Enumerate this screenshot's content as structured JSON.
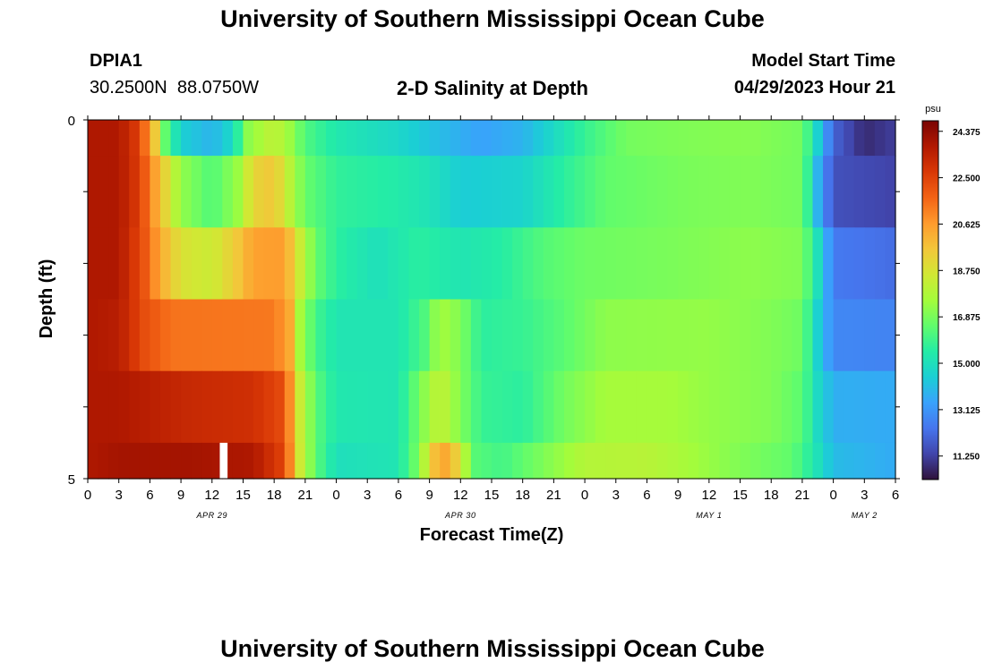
{
  "header": {
    "title": "University of Southern Mississippi Ocean Cube",
    "station_id": "DPIA1",
    "station_coords": "30.2500N  88.0750W",
    "model_start_label": "Model Start Time",
    "model_start_value": "04/29/2023 Hour 21"
  },
  "footer": {
    "title": "University of Southern Mississippi Ocean Cube"
  },
  "chart_data": {
    "type": "heatmap",
    "title": "2-D Salinity at Depth",
    "xlabel": "Forecast Time(Z)",
    "ylabel": "Depth (ft)",
    "colorbar_unit": "psu",
    "colorbar_ticks": [
      "24.375",
      "22.500",
      "20.625",
      "18.750",
      "16.875",
      "15.000",
      "13.125",
      "11.250"
    ],
    "colorbar_range": [
      10.3,
      24.8
    ],
    "colors": [
      "#30123b",
      "#4145ab",
      "#4675ed",
      "#39a2fc",
      "#1bcfd4",
      "#24eca6",
      "#61fc6c",
      "#a4fc3b",
      "#d1e834",
      "#f3c63a",
      "#fe9b2d",
      "#f36315",
      "#d93806",
      "#b11901",
      "#7a0403"
    ],
    "y_range": [
      0,
      5
    ],
    "y_tick_labels": [
      "0",
      "5"
    ],
    "x_range_hours": [
      0,
      78
    ],
    "x_tick_labels": [
      "0",
      "3",
      "6",
      "9",
      "12",
      "15",
      "18",
      "21",
      "0",
      "3",
      "6",
      "9",
      "12",
      "15",
      "18",
      "21",
      "0",
      "3",
      "6",
      "9",
      "12",
      "15",
      "18",
      "21",
      "0",
      "3",
      "6"
    ],
    "date_labels": [
      {
        "label": "APR 29",
        "hour": 12
      },
      {
        "label": "APR 30",
        "hour": 36
      },
      {
        "label": "MAY 1",
        "hour": 60
      },
      {
        "label": "MAY 2",
        "hour": 75
      }
    ],
    "depth_layers": [
      {
        "depth": [
          0,
          0.5
        ],
        "values": [
          {
            "t": 0,
            "v": 23.8
          },
          {
            "t": 3,
            "v": 23.8
          },
          {
            "t": 5,
            "v": 22.5
          },
          {
            "t": 6.5,
            "v": 19.5
          },
          {
            "t": 7.5,
            "v": 16.5
          },
          {
            "t": 9,
            "v": 14.5
          },
          {
            "t": 12,
            "v": 13.8
          },
          {
            "t": 14,
            "v": 14.8
          },
          {
            "t": 15.5,
            "v": 17.2
          },
          {
            "t": 18,
            "v": 18.2
          },
          {
            "t": 19.5,
            "v": 17.4
          },
          {
            "t": 21,
            "v": 16.2
          },
          {
            "t": 24,
            "v": 15.3
          },
          {
            "t": 30,
            "v": 14.7
          },
          {
            "t": 34,
            "v": 14.0
          },
          {
            "t": 38,
            "v": 13.4
          },
          {
            "t": 42,
            "v": 13.8
          },
          {
            "t": 48,
            "v": 15.8
          },
          {
            "t": 52,
            "v": 16.8
          },
          {
            "t": 58,
            "v": 17.0
          },
          {
            "t": 64,
            "v": 17.1
          },
          {
            "t": 69,
            "v": 16.8
          },
          {
            "t": 70.5,
            "v": 14.5
          },
          {
            "t": 72,
            "v": 12.0
          },
          {
            "t": 75,
            "v": 10.8
          },
          {
            "t": 78,
            "v": 11.2
          }
        ]
      },
      {
        "depth": [
          0.5,
          1.5
        ],
        "values": [
          {
            "t": 0,
            "v": 23.8
          },
          {
            "t": 3,
            "v": 23.8
          },
          {
            "t": 5,
            "v": 22.6
          },
          {
            "t": 6.5,
            "v": 20.5
          },
          {
            "t": 8,
            "v": 18.5
          },
          {
            "t": 9,
            "v": 17.3
          },
          {
            "t": 12,
            "v": 16.2
          },
          {
            "t": 14.5,
            "v": 17.4
          },
          {
            "t": 16,
            "v": 19.2
          },
          {
            "t": 18,
            "v": 19.6
          },
          {
            "t": 19.5,
            "v": 18.0
          },
          {
            "t": 21,
            "v": 16.6
          },
          {
            "t": 24,
            "v": 15.7
          },
          {
            "t": 30,
            "v": 15.4
          },
          {
            "t": 33,
            "v": 15.1
          },
          {
            "t": 36,
            "v": 14.4
          },
          {
            "t": 42,
            "v": 14.6
          },
          {
            "t": 46,
            "v": 15.6
          },
          {
            "t": 50,
            "v": 16.5
          },
          {
            "t": 58,
            "v": 16.9
          },
          {
            "t": 64,
            "v": 17.0
          },
          {
            "t": 69,
            "v": 16.8
          },
          {
            "t": 70.5,
            "v": 13.8
          },
          {
            "t": 72,
            "v": 11.6
          },
          {
            "t": 78,
            "v": 11.3
          }
        ]
      },
      {
        "depth": [
          1.5,
          2.5
        ],
        "values": [
          {
            "t": 0,
            "v": 23.8
          },
          {
            "t": 3,
            "v": 23.8
          },
          {
            "t": 5.5,
            "v": 22.0
          },
          {
            "t": 7,
            "v": 20.3
          },
          {
            "t": 9,
            "v": 18.8
          },
          {
            "t": 12,
            "v": 18.4
          },
          {
            "t": 14.5,
            "v": 19.6
          },
          {
            "t": 16,
            "v": 20.5
          },
          {
            "t": 19,
            "v": 20.6
          },
          {
            "t": 20.5,
            "v": 18.4
          },
          {
            "t": 22,
            "v": 16.6
          },
          {
            "t": 24,
            "v": 15.6
          },
          {
            "t": 28,
            "v": 15.0
          },
          {
            "t": 32,
            "v": 15.6
          },
          {
            "t": 36,
            "v": 15.2
          },
          {
            "t": 40,
            "v": 15.5
          },
          {
            "t": 44,
            "v": 16.3
          },
          {
            "t": 48,
            "v": 16.7
          },
          {
            "t": 56,
            "v": 16.9
          },
          {
            "t": 64,
            "v": 17.2
          },
          {
            "t": 69,
            "v": 17.0
          },
          {
            "t": 70.5,
            "v": 15.0
          },
          {
            "t": 72,
            "v": 12.5
          },
          {
            "t": 78,
            "v": 12.2
          }
        ]
      },
      {
        "depth": [
          2.5,
          3.5
        ],
        "values": [
          {
            "t": 0,
            "v": 23.8
          },
          {
            "t": 3,
            "v": 23.6
          },
          {
            "t": 5.5,
            "v": 22.2
          },
          {
            "t": 8,
            "v": 21.4
          },
          {
            "t": 18,
            "v": 21.3
          },
          {
            "t": 19.5,
            "v": 20.3
          },
          {
            "t": 20.5,
            "v": 17.6
          },
          {
            "t": 22,
            "v": 16.0
          },
          {
            "t": 24,
            "v": 15.2
          },
          {
            "t": 30,
            "v": 15.2
          },
          {
            "t": 32.5,
            "v": 16.2
          },
          {
            "t": 34,
            "v": 17.6
          },
          {
            "t": 36,
            "v": 17.0
          },
          {
            "t": 38,
            "v": 15.6
          },
          {
            "t": 42,
            "v": 15.8
          },
          {
            "t": 46,
            "v": 16.4
          },
          {
            "t": 50,
            "v": 17.2
          },
          {
            "t": 60,
            "v": 17.3
          },
          {
            "t": 66,
            "v": 17.0
          },
          {
            "t": 69,
            "v": 16.7
          },
          {
            "t": 70.5,
            "v": 14.5
          },
          {
            "t": 72,
            "v": 12.8
          },
          {
            "t": 78,
            "v": 12.7
          }
        ]
      },
      {
        "depth": [
          3.5,
          4.5
        ],
        "values": [
          {
            "t": 0,
            "v": 23.8
          },
          {
            "t": 3,
            "v": 23.8
          },
          {
            "t": 10,
            "v": 23.2
          },
          {
            "t": 16,
            "v": 23.0
          },
          {
            "t": 19,
            "v": 22.2
          },
          {
            "t": 20.5,
            "v": 18.4
          },
          {
            "t": 22,
            "v": 16.4
          },
          {
            "t": 24,
            "v": 15.3
          },
          {
            "t": 30,
            "v": 15.2
          },
          {
            "t": 32,
            "v": 16.8
          },
          {
            "t": 34,
            "v": 18.3
          },
          {
            "t": 36,
            "v": 17.0
          },
          {
            "t": 38,
            "v": 15.8
          },
          {
            "t": 42,
            "v": 15.6
          },
          {
            "t": 46,
            "v": 16.8
          },
          {
            "t": 50,
            "v": 17.6
          },
          {
            "t": 56,
            "v": 17.6
          },
          {
            "t": 60,
            "v": 17.3
          },
          {
            "t": 66,
            "v": 17.0
          },
          {
            "t": 69,
            "v": 16.4
          },
          {
            "t": 70.5,
            "v": 14.8
          },
          {
            "t": 72,
            "v": 13.7
          },
          {
            "t": 78,
            "v": 13.6
          }
        ]
      },
      {
        "depth": [
          4.5,
          5
        ],
        "values": [
          {
            "t": 0,
            "v": 23.8
          },
          {
            "t": 3,
            "v": 24.0
          },
          {
            "t": 10,
            "v": 24.0
          },
          {
            "t": 16,
            "v": 23.8
          },
          {
            "t": 19,
            "v": 22.4
          },
          {
            "t": 20.5,
            "v": 18.5
          },
          {
            "t": 22,
            "v": 16.4
          },
          {
            "t": 24,
            "v": 15.0
          },
          {
            "t": 30,
            "v": 15.2
          },
          {
            "t": 32,
            "v": 17.0
          },
          {
            "t": 33.5,
            "v": 19.8
          },
          {
            "t": 34.5,
            "v": 20.3
          },
          {
            "t": 36,
            "v": 19.0
          },
          {
            "t": 37,
            "v": 16.4
          },
          {
            "t": 40,
            "v": 16.0
          },
          {
            "t": 45,
            "v": 17.2
          },
          {
            "t": 48,
            "v": 17.9
          },
          {
            "t": 54,
            "v": 18.0
          },
          {
            "t": 58,
            "v": 17.6
          },
          {
            "t": 62,
            "v": 17.1
          },
          {
            "t": 68,
            "v": 16.5
          },
          {
            "t": 70,
            "v": 15.4
          },
          {
            "t": 72,
            "v": 14.0
          },
          {
            "t": 78,
            "v": 13.6
          }
        ]
      }
    ],
    "missing_cells": [
      {
        "t_start": 12.75,
        "t_end": 13.5,
        "depth": [
          4.5,
          5
        ]
      }
    ]
  }
}
